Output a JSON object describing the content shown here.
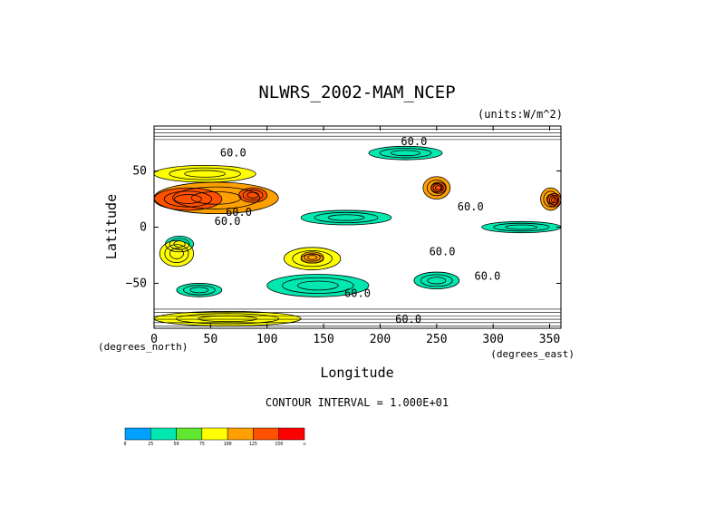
{
  "chart_data": {
    "type": "heatmap",
    "title": "NLWRS_2002-MAM_NCEP",
    "units": "(units:W/m^2)",
    "xlabel": "Longitude",
    "ylabel": "Latitude",
    "x_units": "(degrees_east)",
    "y_units": "(degrees_north)",
    "xlim": [
      0,
      360
    ],
    "ylim": [
      -90,
      90
    ],
    "x_ticks": [
      0,
      50,
      100,
      150,
      200,
      250,
      300,
      350
    ],
    "y_ticks": [
      50,
      0,
      -50
    ],
    "x_tick_labels": [
      "0",
      "50",
      "100",
      "150",
      "200",
      "250",
      "300",
      "350"
    ],
    "y_tick_labels": [
      "50",
      "0",
      "−50"
    ],
    "contour_interval": "CONTOUR INTERVAL = 1.000E+01",
    "contour_labels": [
      {
        "text": "60.0",
        "lon": 70,
        "lat": 63
      },
      {
        "text": "60.0",
        "lon": 75,
        "lat": 10
      },
      {
        "text": "60.0",
        "lon": 65,
        "lat": 2
      },
      {
        "text": "60.0",
        "lon": 230,
        "lat": 73
      },
      {
        "text": "60.0",
        "lon": 280,
        "lat": 15
      },
      {
        "text": "60.0",
        "lon": 255,
        "lat": -25
      },
      {
        "text": "60.0",
        "lon": 295,
        "lat": -47
      },
      {
        "text": "60.0",
        "lon": 180,
        "lat": -62
      },
      {
        "text": "60.0",
        "lon": 225,
        "lat": -85
      }
    ],
    "colorbar": {
      "levels": [
        "0",
        "25",
        "50",
        "75",
        "100",
        "125",
        "150",
        "∞"
      ],
      "colors": [
        "#00a0ff",
        "#00e8b0",
        "#60e830",
        "#ffff00",
        "#ffa000",
        "#ff5000",
        "#ff0000"
      ]
    },
    "field_regions": [
      {
        "color": "#60e830",
        "lon": [
          0,
          360
        ],
        "lat": [
          -90,
          90
        ]
      },
      {
        "color": "#00e8b0",
        "lon": [
          20,
          60
        ],
        "lat": [
          -50,
          -62
        ]
      },
      {
        "color": "#00e8b0",
        "lon": [
          100,
          190
        ],
        "lat": [
          -42,
          -62
        ]
      },
      {
        "color": "#00e8b0",
        "lon": [
          230,
          270
        ],
        "lat": [
          -40,
          -55
        ]
      },
      {
        "color": "#00e8b0",
        "lon": [
          130,
          210
        ],
        "lat": [
          15,
          2
        ]
      },
      {
        "color": "#00e8b0",
        "lon": [
          190,
          255
        ],
        "lat": [
          72,
          60
        ]
      },
      {
        "color": "#00e8b0",
        "lon": [
          290,
          360
        ],
        "lat": [
          5,
          -5
        ]
      },
      {
        "color": "#00e8b0",
        "lon": [
          10,
          35
        ],
        "lat": [
          -8,
          -22
        ]
      },
      {
        "color": "#ffff00",
        "lon": [
          5,
          35
        ],
        "lat": [
          -12,
          -35
        ]
      },
      {
        "color": "#ffff00",
        "lon": [
          115,
          165
        ],
        "lat": [
          -18,
          -38
        ]
      },
      {
        "color": "#ffff00",
        "lon": [
          0,
          90
        ],
        "lat": [
          55,
          40
        ]
      },
      {
        "color": "#ffff00",
        "lon": [
          0,
          130
        ],
        "lat": [
          -75,
          -88
        ]
      },
      {
        "color": "#ffa000",
        "lon": [
          0,
          110
        ],
        "lat": [
          40,
          12
        ]
      },
      {
        "color": "#ffa000",
        "lon": [
          238,
          262
        ],
        "lat": [
          45,
          25
        ]
      },
      {
        "color": "#ffa000",
        "lon": [
          342,
          360
        ],
        "lat": [
          35,
          15
        ]
      },
      {
        "color": "#ffa000",
        "lon": [
          130,
          150
        ],
        "lat": [
          -22,
          -32
        ]
      },
      {
        "color": "#ff5000",
        "lon": [
          0,
          60
        ],
        "lat": [
          35,
          15
        ]
      },
      {
        "color": "#ff5000",
        "lon": [
          245,
          258
        ],
        "lat": [
          40,
          30
        ]
      },
      {
        "color": "#ff5000",
        "lon": [
          348,
          360
        ],
        "lat": [
          30,
          18
        ]
      },
      {
        "color": "#ff5000",
        "lon": [
          75,
          100
        ],
        "lat": [
          35,
          22
        ]
      }
    ]
  }
}
